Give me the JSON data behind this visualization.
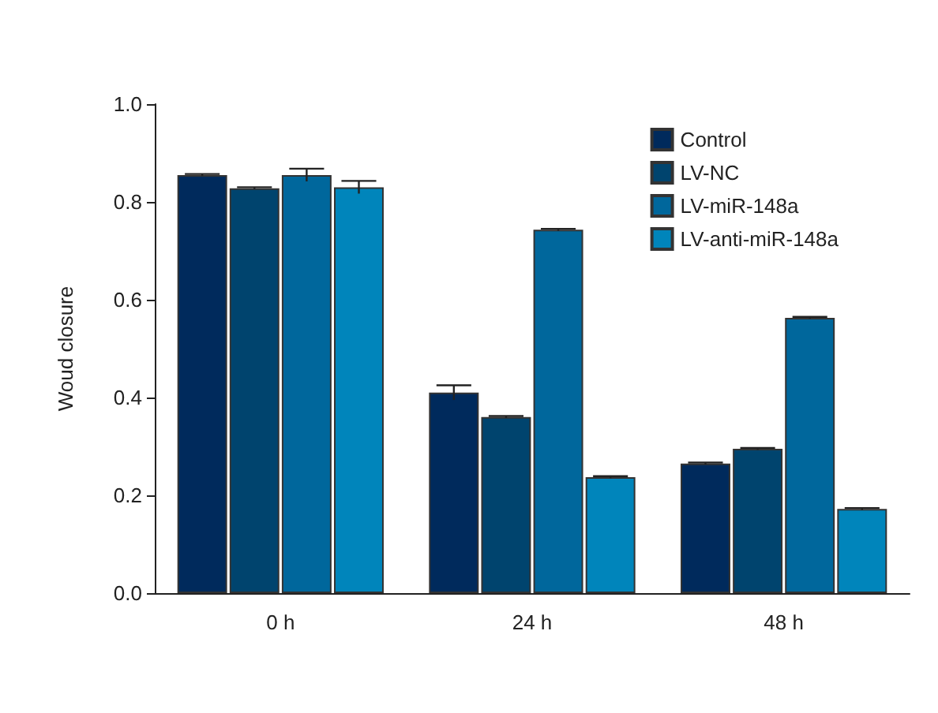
{
  "chart_data": {
    "type": "bar",
    "ylabel": "Woud closure",
    "categories": [
      "0 h",
      "24 h",
      "48 h"
    ],
    "series": [
      {
        "name": "Control",
        "color": "#002a5c",
        "values": [
          0.855,
          0.41,
          0.265
        ],
        "errors": [
          0.002,
          0.015,
          0.002
        ]
      },
      {
        "name": "LV-NC",
        "color": "#00446e",
        "values": [
          0.828,
          0.36,
          0.295
        ],
        "errors": [
          0.002,
          0.002,
          0.002
        ]
      },
      {
        "name": "LV-miR-148a",
        "color": "#00679c",
        "values": [
          0.855,
          0.743,
          0.563
        ],
        "errors": [
          0.013,
          0.002,
          0.002
        ]
      },
      {
        "name": "LV-anti-miR-148a",
        "color": "#0085bb",
        "values": [
          0.83,
          0.237,
          0.172
        ],
        "errors": [
          0.013,
          0.002,
          0.002
        ]
      }
    ],
    "ylim": [
      0,
      1
    ],
    "yticks": [
      {
        "value": 0,
        "label": "0.0"
      },
      {
        "value": 0.2,
        "label": "0.2"
      },
      {
        "value": 0.4,
        "label": "0.4"
      },
      {
        "value": 0.6,
        "label": "0.6"
      },
      {
        "value": 0.8,
        "label": "0.8"
      },
      {
        "value": 1,
        "label": "1.0"
      }
    ],
    "grid": false,
    "legend": "top right"
  }
}
